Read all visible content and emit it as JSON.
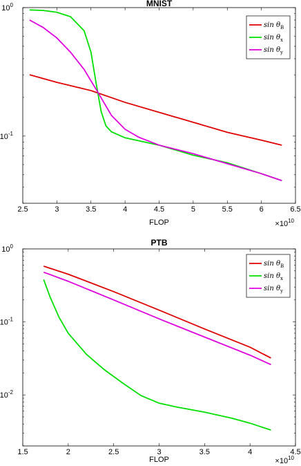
{
  "chart_data": [
    {
      "type": "line",
      "title": "MNIST",
      "xlabel": "FLOP",
      "ylabel": "",
      "x_multiplier": "×10^10",
      "xlim": [
        2.5,
        6.5
      ],
      "ylim": [
        0.03,
        1
      ],
      "yscale": "log",
      "x_ticks": [
        2.5,
        3,
        3.5,
        4,
        4.5,
        5,
        5.5,
        6,
        6.5
      ],
      "x_tick_labels": [
        "2.5",
        "3",
        "3.5",
        "4",
        "4.5",
        "5",
        "5.5",
        "6",
        "6.5"
      ],
      "y_ticks": [
        0.1,
        1
      ],
      "y_tick_labels": [
        {
          "base": "10",
          "exp": "-1"
        },
        {
          "base": "10",
          "exp": "0"
        }
      ],
      "legend": "top-right",
      "grid": false,
      "series": [
        {
          "name": "sin θ_B",
          "label_main": "sin θ",
          "label_sub": "B",
          "color": "#e00000",
          "x": [
            2.6,
            3.0,
            3.5,
            4.0,
            4.5,
            5.0,
            5.5,
            6.0,
            6.3
          ],
          "y": [
            0.3,
            0.262,
            0.226,
            0.183,
            0.153,
            0.128,
            0.107,
            0.093,
            0.085
          ]
        },
        {
          "name": "sin θ_x",
          "label_main": "sin θ",
          "label_sub": "x",
          "color": "#00e000",
          "x": [
            2.6,
            2.8,
            3.0,
            3.2,
            3.4,
            3.5,
            3.58,
            3.65,
            3.72,
            3.8,
            4.0,
            4.5,
            5.0,
            5.5,
            6.0,
            6.3
          ],
          "y": [
            0.96,
            0.95,
            0.92,
            0.85,
            0.66,
            0.45,
            0.25,
            0.155,
            0.12,
            0.108,
            0.097,
            0.085,
            0.071,
            0.062,
            0.051,
            0.045
          ]
        },
        {
          "name": "sin θ_y",
          "label_main": "sin θ",
          "label_sub": "y",
          "color": "#e000e0",
          "x": [
            2.6,
            2.8,
            3.0,
            3.2,
            3.4,
            3.6,
            3.8,
            4.0,
            4.2,
            4.5,
            5.0,
            5.5,
            6.0,
            6.3
          ],
          "y": [
            0.8,
            0.7,
            0.58,
            0.45,
            0.33,
            0.22,
            0.145,
            0.113,
            0.098,
            0.085,
            0.073,
            0.061,
            0.051,
            0.045
          ]
        }
      ]
    },
    {
      "type": "line",
      "title": "PTB",
      "xlabel": "FLOP",
      "ylabel": "",
      "x_multiplier": "×10^10",
      "xlim": [
        1.5,
        4.5
      ],
      "ylim": [
        0.002,
        1
      ],
      "yscale": "log",
      "x_ticks": [
        1.5,
        2,
        2.5,
        3,
        3.5,
        4,
        4.5
      ],
      "x_tick_labels": [
        "1.5",
        "2",
        "2.5",
        "3",
        "3.5",
        "4",
        "4.5"
      ],
      "y_ticks": [
        0.01,
        0.1,
        1
      ],
      "y_tick_labels": [
        {
          "base": "10",
          "exp": "-2"
        },
        {
          "base": "10",
          "exp": "-1"
        },
        {
          "base": "10",
          "exp": "0"
        }
      ],
      "legend": "top-right",
      "grid": false,
      "series": [
        {
          "name": "sin θ_B",
          "label_main": "sin θ",
          "label_sub": "B",
          "color": "#e00000",
          "x": [
            1.73,
            2.0,
            2.5,
            3.0,
            3.5,
            4.0,
            4.23
          ],
          "y": [
            0.58,
            0.45,
            0.26,
            0.145,
            0.08,
            0.045,
            0.032
          ]
        },
        {
          "name": "sin θ_x",
          "label_main": "sin θ",
          "label_sub": "x",
          "color": "#00e000",
          "x": [
            1.73,
            1.8,
            1.9,
            2.0,
            2.2,
            2.4,
            2.6,
            2.8,
            3.0,
            3.2,
            3.5,
            3.8,
            4.0,
            4.23
          ],
          "y": [
            0.38,
            0.22,
            0.115,
            0.07,
            0.036,
            0.022,
            0.0145,
            0.0098,
            0.0077,
            0.0068,
            0.0058,
            0.0048,
            0.0041,
            0.0033
          ]
        },
        {
          "name": "sin θ_y",
          "label_main": "sin θ",
          "label_sub": "y",
          "color": "#e000e0",
          "x": [
            1.73,
            2.0,
            2.5,
            3.0,
            3.5,
            4.0,
            4.23
          ],
          "y": [
            0.48,
            0.36,
            0.2,
            0.11,
            0.062,
            0.035,
            0.026
          ]
        }
      ]
    }
  ]
}
